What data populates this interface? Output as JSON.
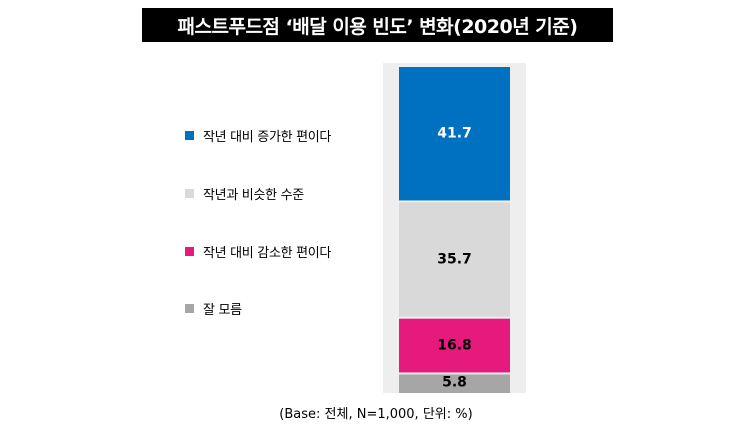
{
  "title": "패스트푸드점 ‘배달 이용 빈도’ 변화(2020년 기준)",
  "footnote": "(Base: 전체, N=1,000, 단위: %)",
  "colors": {
    "background_band": "#eeeeee",
    "title_bg": "#000000"
  },
  "chart_data": {
    "type": "bar",
    "stacked": true,
    "orientation": "vertical",
    "unit": "%",
    "legend_position": "left",
    "grid": false,
    "categories": [
      ""
    ],
    "series": [
      {
        "name": "작년 대비 증가한 편이다",
        "values": [
          41.7
        ],
        "color": "#0070c0",
        "label": "41.7",
        "label_color": "#ffffff"
      },
      {
        "name": "작년과 비슷한 수준",
        "values": [
          35.7
        ],
        "color": "#d9d9d9",
        "label": "35.7",
        "label_color": "#000000"
      },
      {
        "name": "작년 대비 감소한 편이다",
        "values": [
          16.8
        ],
        "color": "#e6197d",
        "label": "16.8",
        "label_color": "#000000"
      },
      {
        "name": "잘 모름",
        "values": [
          5.8
        ],
        "color": "#a6a6a6",
        "label": "5.8",
        "label_color": "#000000"
      }
    ]
  }
}
